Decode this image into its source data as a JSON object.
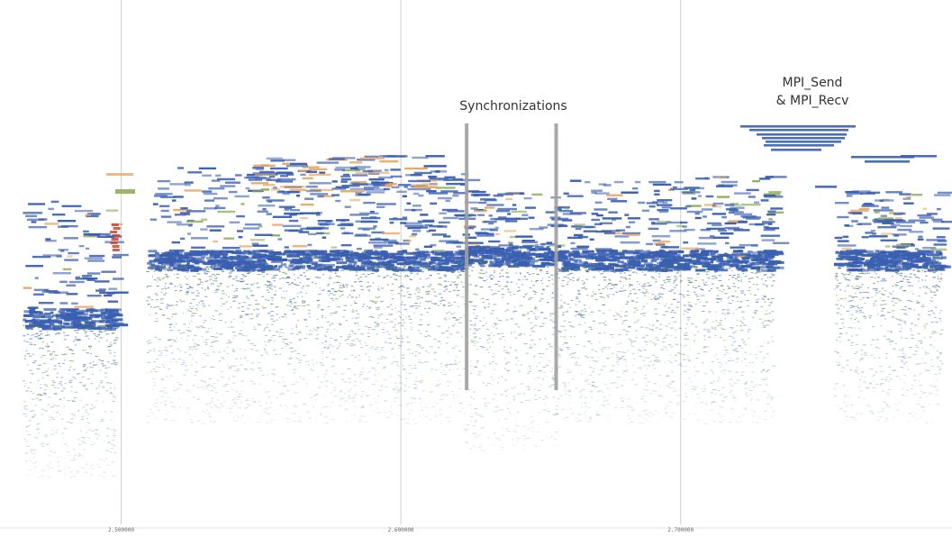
{
  "chart_data": {
    "type": "scatter",
    "title": "",
    "xlabel": "",
    "ylabel": "",
    "xlim": [
      2.4567,
      2.797
    ],
    "x_ticks": [
      {
        "value": 2.5,
        "label": "2.500000"
      },
      {
        "value": 2.6,
        "label": "2.600000"
      },
      {
        "value": 2.7,
        "label": "2.700000"
      }
    ],
    "grid": "vertical",
    "annotations": [
      {
        "id": "synchronizations",
        "lines": [
          "Synchronizations"
        ]
      },
      {
        "id": "mpi",
        "lines": [
          "MPI_Send",
          "& MPI_Recv"
        ]
      }
    ],
    "synchronization_times": [
      2.6235,
      2.6555
    ],
    "colors": {
      "blue": "#3a5fb0",
      "green": "#4f8a3a",
      "orange": "#e8a765",
      "red": "#c8452a",
      "olive": "#8fae5a",
      "grid": "#cfcfcf",
      "sync_bar": "#a0a0a0"
    }
  }
}
